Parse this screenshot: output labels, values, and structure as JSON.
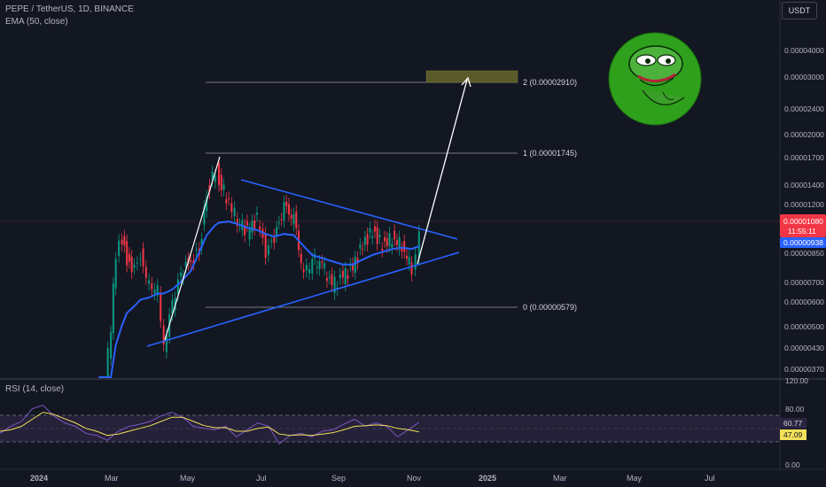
{
  "header": {
    "symbol_line": "PEPE / TetherUS, 1D, BINANCE",
    "indicator_line": "EMA (50, close)",
    "currency_button": "USDT"
  },
  "rsi_panel": {
    "label": "RSI (14, close)",
    "rsi_value": "60.77",
    "rsi_ma_value": "47.09",
    "axis_labels": [
      "120.00",
      "80.00",
      "0.00"
    ],
    "upper_band": 70,
    "lower_band": 30,
    "range": [
      0,
      120
    ]
  },
  "price_panel": {
    "current_price": "0.00001080",
    "countdown": "11:55:11",
    "ema_value": "0.00000938",
    "axis_labels": [
      "0.00004000",
      "0.00003000",
      "0.00002400",
      "0.00002000",
      "0.00001700",
      "0.00001400",
      "0.00001200",
      "0.00000850",
      "0.00000700",
      "0.00000600",
      "0.00000500",
      "0.00000430",
      "0.00000370"
    ]
  },
  "fib_levels": [
    {
      "label": "2 (0.00002910)",
      "value": 2.91e-05
    },
    {
      "label": "1 (0.00001745)",
      "value": 1.745e-05
    },
    {
      "label": "0 (0.00000579)",
      "value": 5.79e-06
    }
  ],
  "time_axis": [
    "2024",
    "Mar",
    "May",
    "Jul",
    "Sep",
    "Nov",
    "2025",
    "Mar",
    "May",
    "Jul"
  ],
  "colors": {
    "background": "#131722",
    "candle_up": "#089981",
    "candle_down": "#f23645",
    "ema": "#2962ff",
    "trendline": "#2962ff",
    "projection": "#ffffff",
    "rsi_line": "#7e57c2",
    "rsi_ma": "#f2e05a",
    "rsi_band_fill": "#2a2440",
    "target_box": "#5b5a2a",
    "logo_green": "#2fa01c"
  },
  "chart_data": {
    "type": "candlestick",
    "symbol": "PEPE / TetherUS",
    "interval": "1D",
    "exchange": "BINANCE",
    "y_scale": "log",
    "ylim": [
      3.3e-06,
      5e-05
    ],
    "x": [
      "2024-02-20",
      "2024-02-25",
      "2024-03-01",
      "2024-03-05",
      "2024-03-10",
      "2024-03-14",
      "2024-03-20",
      "2024-03-25",
      "2024-04-01",
      "2024-04-08",
      "2024-04-13",
      "2024-04-20",
      "2024-04-27",
      "2024-05-05",
      "2024-05-12",
      "2024-05-18",
      "2024-05-25",
      "2024-05-28",
      "2024-06-05",
      "2024-06-12",
      "2024-06-20",
      "2024-06-28",
      "2024-07-05",
      "2024-07-12",
      "2024-07-20",
      "2024-07-28",
      "2024-08-05",
      "2024-08-12",
      "2024-08-20",
      "2024-08-28",
      "2024-09-06",
      "2024-09-14",
      "2024-09-22",
      "2024-09-30",
      "2024-10-08",
      "2024-10-16",
      "2024-10-24",
      "2024-11-01",
      "2024-11-04",
      "2024-11-07"
    ],
    "close": [
      2.5e-06,
      3.4e-06,
      5.2e-06,
      9e-06,
      1e-05,
      8.5e-06,
      7.8e-06,
      8.8e-06,
      7e-06,
      6.8e-06,
      4.5e-06,
      6.2e-06,
      7.7e-06,
      8.5e-06,
      9e-06,
      1.4e-05,
      1.65e-05,
      1.55e-05,
      1.3e-05,
      1.15e-05,
      1.05e-05,
      1.15e-05,
      9e-06,
      1e-05,
      1.25e-05,
      1.15e-05,
      7.5e-06,
      8.5e-06,
      8.2e-06,
      7e-06,
      7.5e-06,
      8e-06,
      9.5e-06,
      1.05e-05,
      9.5e-06,
      1e-05,
      9.5e-06,
      8e-06,
      9e-06,
      1.08e-05
    ],
    "ema50": [
      2e-06,
      2.8e-06,
      3.5e-06,
      4.5e-06,
      5.2e-06,
      5.7e-06,
      6e-06,
      6.3e-06,
      6.4e-06,
      6.6e-06,
      6.6e-06,
      6.8e-06,
      7.2e-06,
      7.8e-06,
      9e-06,
      1.02e-05,
      1.1e-05,
      1.12e-05,
      1.13e-05,
      1.11e-05,
      1.08e-05,
      1.06e-05,
      1.03e-05,
      1.01e-05,
      1.03e-05,
      1.02e-05,
      9.4e-06,
      8.8e-06,
      8.6e-06,
      8.4e-06,
      8.2e-06,
      8.2e-06,
      8.5e-06,
      8.8e-06,
      9e-06,
      9.2e-06,
      9.3e-06,
      9.2e-06,
      9.3e-06,
      9.4e-06
    ],
    "rsi": [
      45,
      55,
      62,
      80,
      85,
      70,
      60,
      55,
      45,
      42,
      35,
      48,
      55,
      58,
      62,
      70,
      75,
      68,
      55,
      52,
      50,
      55,
      40,
      50,
      60,
      55,
      30,
      42,
      45,
      40,
      48,
      50,
      58,
      65,
      55,
      60,
      55,
      40,
      50,
      60.77
    ],
    "rsi_ma": [
      48,
      50,
      55,
      65,
      75,
      72,
      66,
      60,
      52,
      48,
      42,
      44,
      48,
      52,
      56,
      62,
      68,
      68,
      62,
      56,
      53,
      53,
      48,
      48,
      52,
      54,
      44,
      42,
      43,
      42,
      44,
      46,
      50,
      55,
      56,
      57,
      56,
      52,
      50,
      47.09
    ],
    "fib": {
      "level_0": 5.79e-06,
      "level_1": 1.745e-05,
      "level_2": 2.91e-05
    },
    "triangle": {
      "upper": [
        [
          "2024-06-01",
          1.5e-05
        ],
        [
          "2024-12-01",
          9.5e-06
        ]
      ],
      "lower": [
        [
          "2024-04-20",
          4.4e-06
        ],
        [
          "2024-12-01",
          8.8e-06
        ]
      ]
    },
    "projection_arrow": [
      [
        "2024-11-04",
        8e-06
      ],
      [
        "2024-11-30",
        2.9e-05
      ]
    ],
    "target_zone": [
      [
        "2024-11-12",
        2.9e-05
      ],
      [
        "2025-01-01",
        3.16e-05
      ]
    ]
  }
}
